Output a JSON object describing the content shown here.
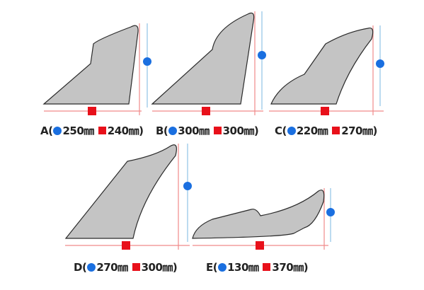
{
  "items": [
    {
      "label": "A(",
      "height": "250㎜",
      "width": "240㎜)"
    },
    {
      "label": "B(",
      "height": "300㎜",
      "width": "300㎜)"
    },
    {
      "label": "C(",
      "height": "220㎜",
      "width": "270㎜)"
    },
    {
      "label": "D(",
      "height": "270㎜",
      "width": "300㎜)"
    },
    {
      "label": "E(",
      "height": "130㎜",
      "width": "370㎜)"
    }
  ]
}
